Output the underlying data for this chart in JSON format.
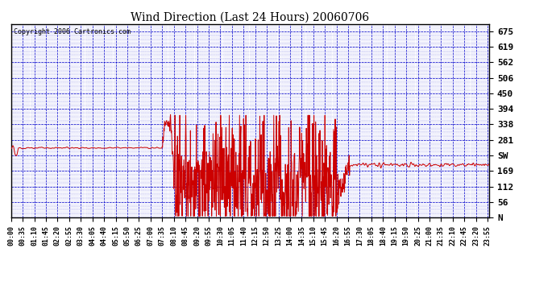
{
  "title": "Wind Direction (Last 24 Hours) 20060706",
  "copyright": "Copyright 2006 Cartronics.com",
  "bg_color": "#ffffff",
  "plot_bg_color": "#ffffff",
  "line_color": "#cc0000",
  "grid_color": "#0000cc",
  "border_color": "#000000",
  "ytick_vals": [
    0,
    56,
    112,
    169,
    225,
    281,
    338,
    394,
    450,
    506,
    562,
    619,
    675
  ],
  "ytick_labels": [
    "N",
    "56",
    "112",
    "169",
    "SW",
    "281",
    "338",
    "394",
    "450",
    "506",
    "562",
    "619",
    "675"
  ],
  "ylim": [
    0,
    700
  ],
  "xtick_step_min": 35,
  "xlim_min": 0,
  "xlim_max": 1440,
  "title_fontsize": 10,
  "copyright_fontsize": 6,
  "ytick_fontsize": 8,
  "xtick_fontsize": 6
}
